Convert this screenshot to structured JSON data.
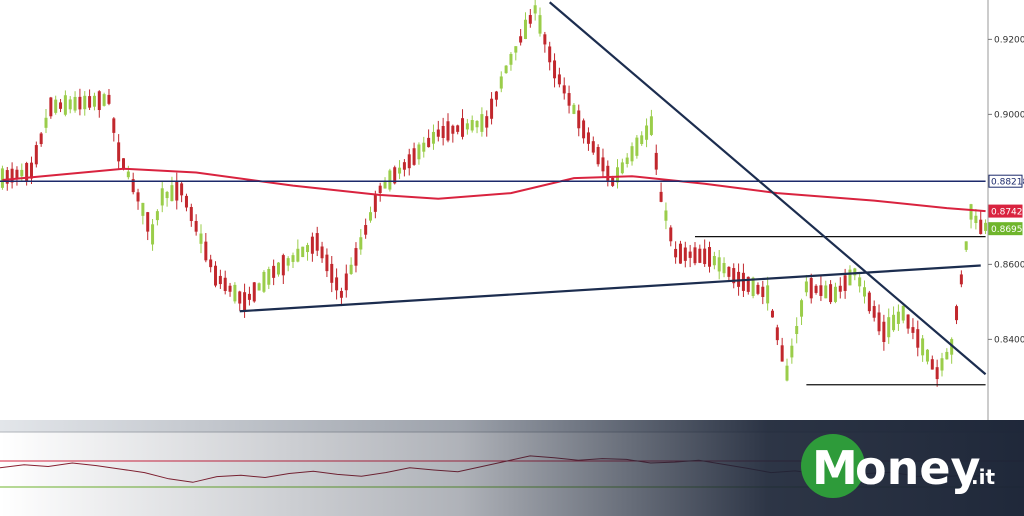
{
  "chart_data": {
    "type": "candlestick",
    "y_axis": {
      "ticks": [
        "0.92000",
        "0.90000",
        "0.86000",
        "0.84000"
      ],
      "tick_values": [
        0.92,
        0.9,
        0.86,
        0.84
      ],
      "ylim": [
        0.8185,
        0.9305
      ]
    },
    "price_tags": [
      {
        "label": "0.88218",
        "value": 0.88218,
        "color": "#1c2a6b"
      },
      {
        "label": "0.87421",
        "value": 0.87421,
        "color": "#d9233f"
      },
      {
        "label": "0.86952",
        "value": 0.86952,
        "color": "#6fb52c"
      }
    ],
    "candle_path": [
      {
        "i": 0,
        "v": 0.883
      },
      {
        "i": 6,
        "v": 0.885
      },
      {
        "i": 10,
        "v": 0.902
      },
      {
        "i": 22,
        "v": 0.904
      },
      {
        "i": 24,
        "v": 0.89
      },
      {
        "i": 28,
        "v": 0.878
      },
      {
        "i": 31,
        "v": 0.868
      },
      {
        "i": 33,
        "v": 0.878
      },
      {
        "i": 37,
        "v": 0.88
      },
      {
        "i": 44,
        "v": 0.857
      },
      {
        "i": 50,
        "v": 0.85
      },
      {
        "i": 56,
        "v": 0.858
      },
      {
        "i": 65,
        "v": 0.866
      },
      {
        "i": 70,
        "v": 0.852
      },
      {
        "i": 73,
        "v": 0.862
      },
      {
        "i": 78,
        "v": 0.88
      },
      {
        "i": 90,
        "v": 0.895
      },
      {
        "i": 100,
        "v": 0.898
      },
      {
        "i": 104,
        "v": 0.912
      },
      {
        "i": 110,
        "v": 0.928
      },
      {
        "i": 114,
        "v": 0.912
      },
      {
        "i": 120,
        "v": 0.896
      },
      {
        "i": 126,
        "v": 0.882
      },
      {
        "i": 134,
        "v": 0.897
      },
      {
        "i": 136,
        "v": 0.878
      },
      {
        "i": 139,
        "v": 0.863
      },
      {
        "i": 146,
        "v": 0.862
      },
      {
        "i": 152,
        "v": 0.856
      },
      {
        "i": 158,
        "v": 0.852
      },
      {
        "i": 162,
        "v": 0.831
      },
      {
        "i": 166,
        "v": 0.854
      },
      {
        "i": 172,
        "v": 0.852
      },
      {
        "i": 176,
        "v": 0.858
      },
      {
        "i": 182,
        "v": 0.842
      },
      {
        "i": 186,
        "v": 0.847
      },
      {
        "i": 190,
        "v": 0.838
      },
      {
        "i": 193,
        "v": 0.831
      },
      {
        "i": 196,
        "v": 0.838
      },
      {
        "i": 200,
        "v": 0.874
      },
      {
        "i": 202,
        "v": 0.87
      }
    ],
    "moving_average": [
      {
        "i": 0,
        "v": 0.8825
      },
      {
        "i": 25,
        "v": 0.8855
      },
      {
        "i": 40,
        "v": 0.8845
      },
      {
        "i": 60,
        "v": 0.881
      },
      {
        "i": 78,
        "v": 0.8785
      },
      {
        "i": 90,
        "v": 0.8775
      },
      {
        "i": 105,
        "v": 0.879
      },
      {
        "i": 118,
        "v": 0.883
      },
      {
        "i": 130,
        "v": 0.8835
      },
      {
        "i": 145,
        "v": 0.8815
      },
      {
        "i": 160,
        "v": 0.879
      },
      {
        "i": 180,
        "v": 0.877
      },
      {
        "i": 195,
        "v": 0.875
      },
      {
        "i": 203,
        "v": 0.8742
      }
    ],
    "lines": [
      {
        "kind": "horizontal",
        "value": 0.88218,
        "from": 0,
        "to": 203,
        "color": "#1c2a6b"
      },
      {
        "kind": "horizontal",
        "value": 0.8674,
        "from": 143,
        "to": 203,
        "color": "#111111"
      },
      {
        "kind": "horizontal",
        "value": 0.8279,
        "from": 166,
        "to": 203,
        "color": "#111111"
      },
      {
        "kind": "trend",
        "from": [
          49,
          0.8475
        ],
        "to": [
          202,
          0.8597
        ],
        "color": "#1c2d4f"
      },
      {
        "kind": "trend",
        "from": [
          113,
          0.9299
        ],
        "to": [
          203,
          0.8307
        ],
        "color": "#1c2d4f"
      }
    ],
    "oscillator": {
      "upper_level_color": "#d9233f",
      "lower_level_color": "#6fb52c",
      "values": [
        0.55,
        0.62,
        0.58,
        0.66,
        0.6,
        0.52,
        0.44,
        0.3,
        0.22,
        0.35,
        0.38,
        0.33,
        0.42,
        0.47,
        0.4,
        0.36,
        0.44,
        0.55,
        0.5,
        0.46,
        0.58,
        0.7,
        0.82,
        0.78,
        0.72,
        0.76,
        0.74,
        0.66,
        0.68,
        0.72,
        0.63,
        0.54,
        0.44,
        0.48,
        0.4,
        0.38,
        0.42,
        0.45,
        0.36,
        0.34,
        0.38,
        0.35
      ]
    }
  },
  "logo": {
    "letter": "M",
    "text": "oney",
    "suffix": ".it",
    "circle_color": "#2e9b3a"
  }
}
